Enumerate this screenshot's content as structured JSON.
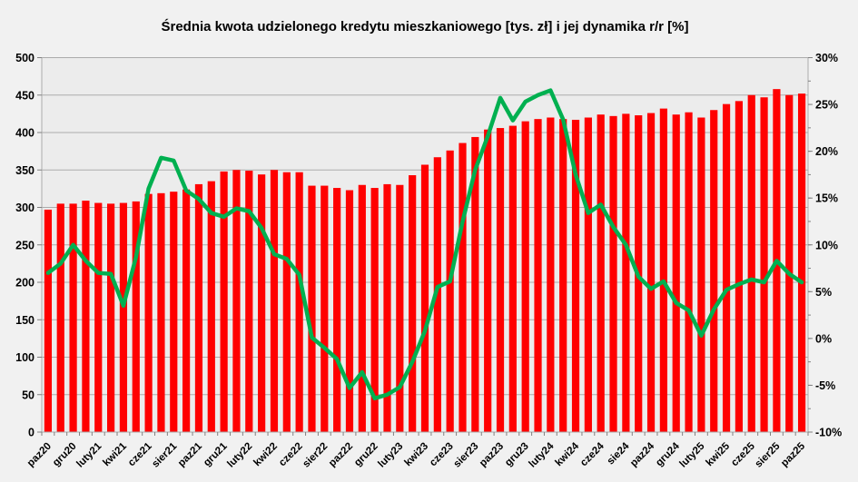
{
  "title": "Średnia kwota udzielonego kredytu mieszkaniowego [tys. zł] i jej dynamika r/r [%]",
  "colors": {
    "bar": "#FF0000",
    "line": "#00B050",
    "grid": "#ABABAB",
    "plot_border": "#ABABAB",
    "plot_bg": "#ECECEC",
    "page_bg": "#F1F1F1",
    "tick": "#808080",
    "text": "#000000"
  },
  "chart_data": {
    "type": "combo-bar-line",
    "title": "Średnia kwota udzielonego kredytu mieszkaniowego [tys. zł] i jej dynamika r/r [%]",
    "grid": true,
    "legend": "none",
    "categories": [
      "paz20",
      "lis20",
      "gru20",
      "sty21",
      "luty21",
      "mar21",
      "kwi21",
      "maj21",
      "cze21",
      "lip21",
      "sier21",
      "wrz21",
      "paz21",
      "lis21",
      "gru21",
      "sty22",
      "luty22",
      "mar22",
      "kwi22",
      "maj22",
      "cze22",
      "lip22",
      "sier22",
      "wrz22",
      "paz22",
      "lis22",
      "gru22",
      "sty23",
      "luty23",
      "mar23",
      "kwi23",
      "maj23",
      "cze23",
      "lip23",
      "sier23",
      "wrz23",
      "paz23",
      "lis23",
      "gru23",
      "sty24",
      "luty24",
      "mar24",
      "kwi24",
      "maj24",
      "cze24",
      "lip24",
      "sie24",
      "wrz24",
      "paz24",
      "lis24",
      "gru24",
      "sty25",
      "luty25",
      "mar25",
      "kwi25",
      "maj25",
      "cze25",
      "lip25",
      "sier25",
      "wrz25",
      "paz25"
    ],
    "x_tick_labels": [
      "paz20",
      "gru20",
      "luty21",
      "kwi21",
      "cze21",
      "sier21",
      "paz21",
      "gru21",
      "luty22",
      "kwi22",
      "cze22",
      "sier22",
      "paz22",
      "gru22",
      "luty23",
      "kwi23",
      "cze23",
      "sier23",
      "paz23",
      "gru23",
      "luty24",
      "kwi24",
      "cze24",
      "sie24",
      "paz24",
      "gru24",
      "luty25",
      "kwi25",
      "cze25",
      "sier25",
      "paz25"
    ],
    "x_label_every": 2,
    "series": [
      {
        "name": "Średnia kwota udzielonego kredytu mieszkaniowego [tys. zł]",
        "type": "bar",
        "axis": "left",
        "color": "#FF0000",
        "values": [
          297,
          305,
          305,
          309,
          306,
          305,
          306,
          308,
          318,
          319,
          321,
          324,
          331,
          335,
          348,
          350,
          349,
          344,
          350,
          347,
          347,
          329,
          329,
          326,
          323,
          330,
          326,
          331,
          330,
          343,
          357,
          367,
          376,
          386,
          394,
          404,
          406,
          409,
          415,
          418,
          420,
          418,
          417,
          420,
          424,
          422,
          425,
          423,
          426,
          432,
          424,
          427,
          420,
          430,
          438,
          442,
          450,
          447,
          458,
          450,
          452
        ]
      },
      {
        "name": "Dynamika r/r [%]",
        "type": "line",
        "axis": "right",
        "color": "#00B050",
        "values": [
          7.0,
          8.0,
          10.0,
          8.3,
          7.0,
          6.9,
          3.5,
          8.7,
          16.0,
          19.3,
          19.0,
          15.8,
          14.9,
          13.4,
          13.0,
          13.9,
          13.6,
          11.8,
          9.0,
          8.5,
          6.8,
          0.1,
          -1.0,
          -2.2,
          -5.3,
          -3.6,
          -6.4,
          -6.0,
          -5.2,
          -2.5,
          0.8,
          5.5,
          6.1,
          12.5,
          18.0,
          21.6,
          25.7,
          23.3,
          25.3,
          26.0,
          26.5,
          23.4,
          17.5,
          13.4,
          14.3,
          11.9,
          10.0,
          6.6,
          5.3,
          6.1,
          3.8,
          3.0,
          0.3,
          3.1,
          5.2,
          5.8,
          6.3,
          6.0,
          8.3,
          6.9,
          6.0
        ]
      }
    ],
    "left_axis": {
      "min": 0,
      "max": 500,
      "step": 50,
      "tick_labels": [
        "500",
        "450",
        "400",
        "350",
        "300",
        "250",
        "200",
        "150",
        "100",
        "50",
        "0"
      ]
    },
    "right_axis": {
      "min": -10,
      "max": 30,
      "step": 5,
      "minor_step": 2.5,
      "tick_labels": [
        "30%",
        "25%",
        "20%",
        "15%",
        "10%",
        "5%",
        "0%",
        "-5%",
        "-10%"
      ]
    }
  }
}
